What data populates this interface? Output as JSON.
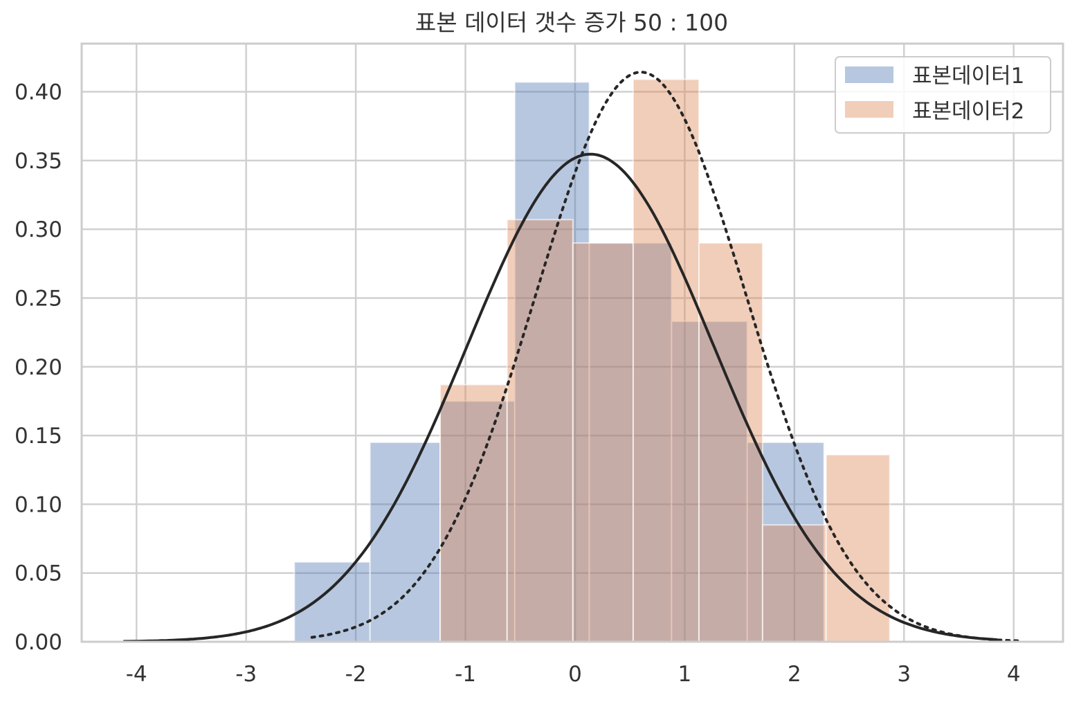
{
  "chart_data": {
    "type": "bar",
    "title": "표본 데이터 갯수 증가 50 : 100",
    "xlabel": "",
    "ylabel": "",
    "xlim": [
      -4.5,
      4.45
    ],
    "ylim": [
      0,
      0.435
    ],
    "x_ticks": [
      -4,
      -3,
      -2,
      -1,
      0,
      1,
      2,
      3,
      4
    ],
    "x_tick_labels": [
      "-4",
      "-3",
      "-2",
      "-1",
      "0",
      "1",
      "2",
      "3",
      "4"
    ],
    "y_ticks": [
      0.0,
      0.05,
      0.1,
      0.15,
      0.2,
      0.25,
      0.3,
      0.35,
      0.4
    ],
    "y_tick_labels": [
      "0.00",
      "0.05",
      "0.10",
      "0.15",
      "0.20",
      "0.25",
      "0.30",
      "0.35",
      "0.40"
    ],
    "grid": true,
    "legend_position": "top-right",
    "series": [
      {
        "name": "표본데이터1",
        "kind": "histogram",
        "color": "#4c72b0",
        "bins": [
          {
            "x0": -2.56,
            "x1": -1.87,
            "value": 0.058
          },
          {
            "x0": -1.87,
            "x1": -1.23,
            "value": 0.145
          },
          {
            "x0": -1.23,
            "x1": -0.55,
            "value": 0.175
          },
          {
            "x0": -0.55,
            "x1": 0.13,
            "value": 0.407
          },
          {
            "x0": 0.13,
            "x1": 0.88,
            "value": 0.29
          },
          {
            "x0": 0.88,
            "x1": 1.57,
            "value": 0.233
          },
          {
            "x0": 1.57,
            "x1": 2.27,
            "value": 0.145
          },
          {
            "x0": 2.27,
            "x1": 2.98,
            "value": 0.0
          }
        ]
      },
      {
        "name": "표본데이터2",
        "kind": "histogram",
        "color": "#dd8452",
        "bins": [
          {
            "x0": -1.23,
            "x1": -0.62,
            "value": 0.187
          },
          {
            "x0": -0.62,
            "x1": -0.02,
            "value": 0.307
          },
          {
            "x0": -0.02,
            "x1": 0.53,
            "value": 0.29
          },
          {
            "x0": 0.53,
            "x1": 1.13,
            "value": 0.409
          },
          {
            "x0": 1.13,
            "x1": 1.71,
            "value": 0.29
          },
          {
            "x0": 1.71,
            "x1": 2.29,
            "value": 0.085
          },
          {
            "x0": 2.29,
            "x1": 2.87,
            "value": 0.136
          }
        ]
      }
    ],
    "curves": [
      {
        "kind": "normal-pdf",
        "style": "solid",
        "color": "#262626",
        "mean": 0.14,
        "std": 1.125,
        "x_range": [
          -4.12,
          3.85
        ]
      },
      {
        "kind": "normal-pdf",
        "style": "dotted",
        "color": "#262626",
        "mean": 0.6,
        "std": 0.963,
        "x_range": [
          -2.4,
          4.05
        ]
      }
    ]
  }
}
